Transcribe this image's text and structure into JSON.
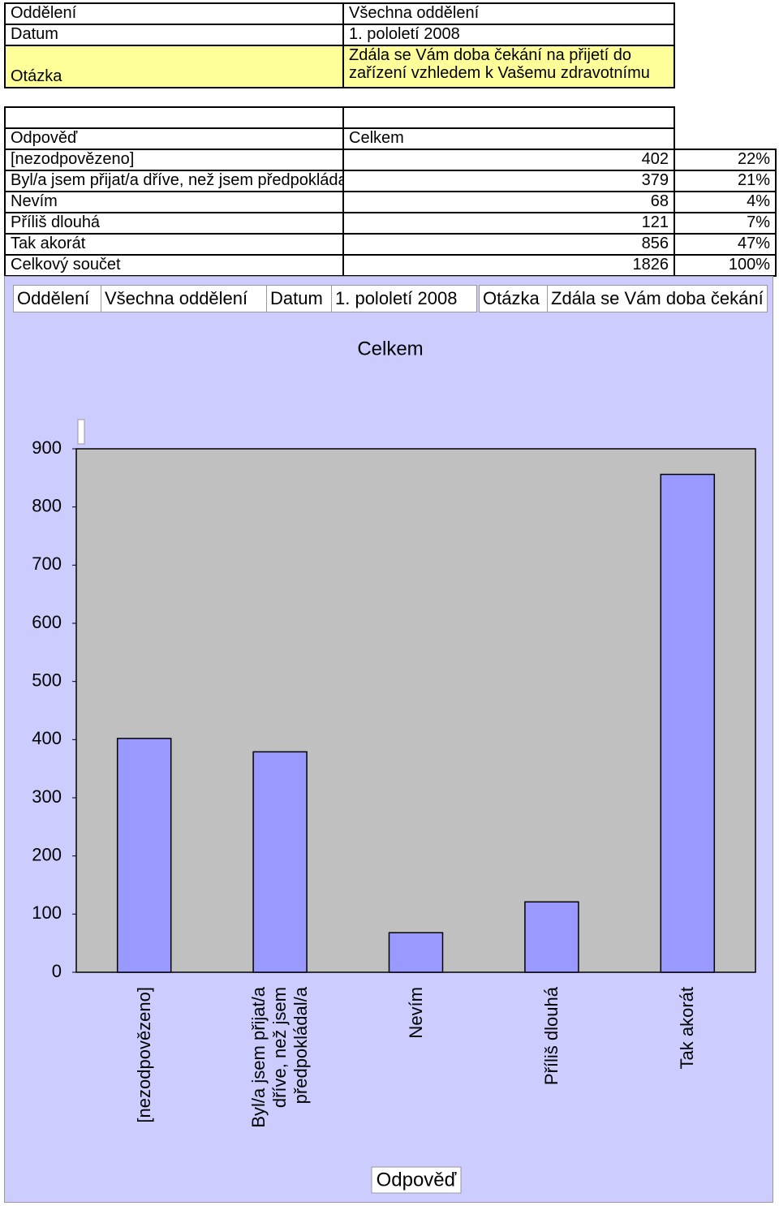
{
  "header": {
    "rows": [
      [
        "Oddělení",
        "Všechna oddělení"
      ],
      [
        "Datum",
        "1. pololetí 2008"
      ],
      [
        "Otázka",
        "Zdála se Vám doba čekání na přijetí do zařízení vzhledem k Vašemu zdravotnímu"
      ]
    ]
  },
  "table": {
    "header": [
      "Odpověď",
      "Celkem"
    ],
    "rows": [
      [
        "[nezodpovězeno]",
        402,
        "22%"
      ],
      [
        "Byl/a jsem přijat/a dříve, než jsem předpokládal/a",
        379,
        "21%"
      ],
      [
        "Nevím",
        68,
        "4%"
      ],
      [
        "Příliš dlouhá",
        121,
        "7%"
      ],
      [
        "Tak akorát",
        856,
        "47%"
      ]
    ],
    "total": [
      "Celkový součet",
      1826,
      "100%"
    ]
  },
  "chart_data": {
    "type": "bar",
    "title": "Celkem",
    "x_label": "Odpověď",
    "categories": [
      "[nezodpovězeno]",
      "Byl/a jsem přijat/a dříve, než jsem předpokládal/a",
      "Nevím",
      "Příliš dlouhá",
      "Tak akorát"
    ],
    "values": [
      402,
      379,
      68,
      121,
      856
    ],
    "color": "#9999ff",
    "ylim": [
      0,
      900
    ],
    "yticks": [
      0,
      100,
      200,
      300,
      400,
      500,
      600,
      700,
      800,
      900
    ],
    "grid": false
  }
}
